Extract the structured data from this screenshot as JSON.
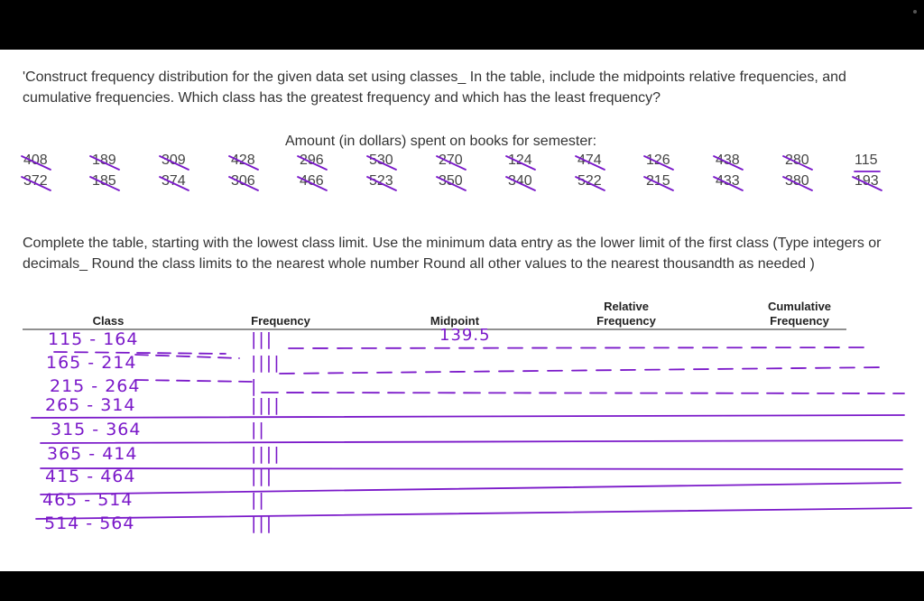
{
  "question": "'Construct frequency distribution for the given data set using classes_ In the table, include the midpoints relative frequencies, and cumulative frequencies. Which class has the greatest frequency and which has the least frequency?",
  "data_title": "Amount (in dollars) spent on books for semester:",
  "data_rows": [
    [
      "408",
      "189",
      "309",
      "428",
      "296",
      "530",
      "270",
      "124",
      "474",
      "126",
      "438",
      "280",
      "115"
    ],
    [
      "372",
      "185",
      "374",
      "306",
      "466",
      "523",
      "350",
      "340",
      "522",
      "215",
      "433",
      "380",
      "193"
    ]
  ],
  "instructions": "Complete the table, starting with the lowest class limit. Use the minimum data entry as the lower limit of the first class (Type integers or decimals_ Round the class limits to the nearest whole number Round all other values to the nearest thousandth as needed )",
  "table": {
    "headers": {
      "class": "Class",
      "frequency": "Frequency",
      "midpoint": "Midpoint",
      "relative": "Relative\nFrequency",
      "cumulative": "Cumulative\nFrequency"
    },
    "rows": [
      {
        "class": "115 - 164",
        "tally": "|||",
        "midpoint": "139.5"
      },
      {
        "class": "165 - 214",
        "tally": "||||",
        "midpoint": ""
      },
      {
        "class": "215 - 264",
        "tally": "|",
        "midpoint": ""
      },
      {
        "class": "265 - 314",
        "tally": "||||",
        "midpoint": ""
      },
      {
        "class": "315 - 364",
        "tally": "||",
        "midpoint": ""
      },
      {
        "class": "365 - 414",
        "tally": "||||",
        "midpoint": ""
      },
      {
        "class": "415 - 464",
        "tally": "|||",
        "midpoint": ""
      },
      {
        "class": "465 - 514",
        "tally": "||",
        "midpoint": ""
      },
      {
        "class": "514 - 564",
        "tally": "|||",
        "midpoint": ""
      }
    ]
  },
  "colors": {
    "ink": "#7a18c9",
    "text": "#333333",
    "background": "#ffffff",
    "frame": "#000000"
  }
}
